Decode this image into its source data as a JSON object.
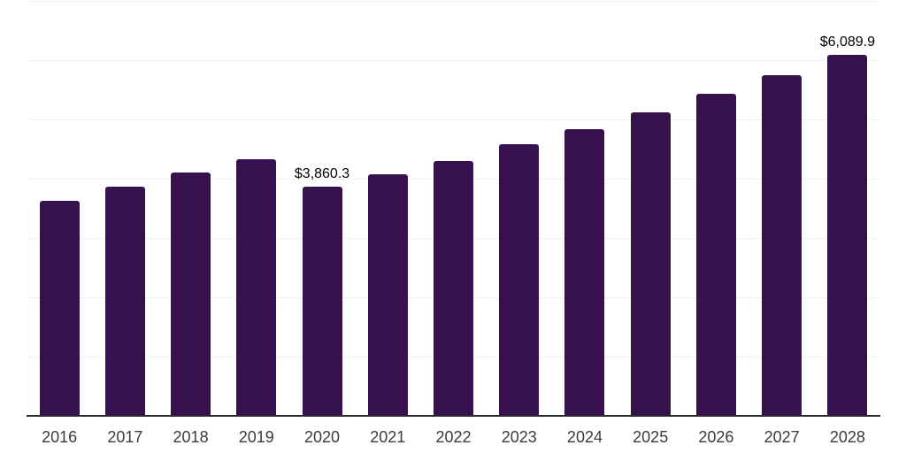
{
  "chart_data": {
    "type": "bar",
    "title": "",
    "xlabel": "",
    "ylabel": "",
    "categories": [
      "2016",
      "2017",
      "2018",
      "2019",
      "2020",
      "2021",
      "2022",
      "2023",
      "2024",
      "2025",
      "2026",
      "2027",
      "2028"
    ],
    "values": [
      3630,
      3870,
      4105,
      4335,
      3860.3,
      4080,
      4305,
      4575,
      4835,
      5125,
      5435,
      5750,
      6089.9
    ],
    "data_labels": [
      {
        "category": "2020",
        "text": "$3,860.3"
      },
      {
        "category": "2028",
        "text": "$6,089.9"
      }
    ],
    "ylim": [
      0,
      7000
    ],
    "gridline_step": 1000,
    "grid": "horizontal-only",
    "y_tick_labels_visible": false,
    "legend": "none"
  },
  "colors": {
    "background": "#ffffff",
    "bar": "#36114E",
    "gridline": "#f2f2f2",
    "axis_line": "#2b2b2b",
    "axis_label_text": "#3c3c3c",
    "data_label_text": "#000000"
  }
}
